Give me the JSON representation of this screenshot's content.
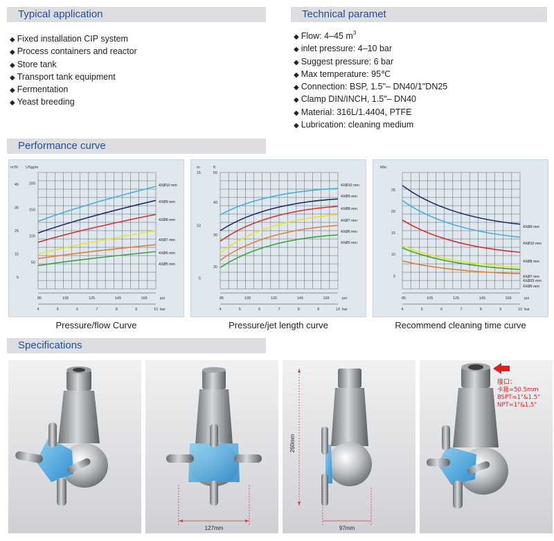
{
  "typical_application": {
    "title": "Typical application",
    "items": [
      "Fixed installation CIP system",
      "Process containers and reactor",
      "Store tank",
      "Transport tank equipment",
      "Fermentation",
      "Yeast breeding"
    ]
  },
  "technical": {
    "title": "Technical paramet",
    "flow_prefix": "Flow: 4–45 m",
    "flow_sup": "3",
    "items": [
      "inlet pressure: 4–10 bar",
      "Suggest pressure: 6 bar",
      "Max temperature: 95℃",
      "Connection: BSP, 1.5\"– DN40/1\"DN25",
      "Clamp DIN/INCH, 1.5\"– DN40",
      "Material: 316L/1.4404, PTFE",
      "Lubrication: cleaning medium"
    ]
  },
  "performance": {
    "title": "Performance curve",
    "captions": [
      "Pressure/flow Curve",
      "Pressure/jet length curve",
      "Recommend cleaning time curve"
    ]
  },
  "specifications": {
    "title": "Specifications",
    "dim_width_1": "127mm",
    "dim_height": "260mm",
    "dim_width_2": "97mm",
    "connection_title": "接口：",
    "connection_lines": [
      "卡箍=50.5mm",
      "BSPT=1\"&1.5\"",
      "NPT=1\"&1.5\""
    ]
  },
  "colors": {
    "accent": "#1f4f9c",
    "panel": "#dfe8ef",
    "series": [
      "#3ab1e4",
      "#1b2a6b",
      "#e02a2a",
      "#f2e21c",
      "#f07a2c",
      "#3aa53a"
    ]
  },
  "chart_data": [
    {
      "type": "line",
      "caption": "Pressure/flow Curve",
      "x": [
        4,
        10
      ],
      "x_ticks_bar": [
        "4",
        "5",
        "6",
        "7",
        "8",
        "9",
        "10"
      ],
      "x_unit_bar": "bar",
      "x_ticks_psi": [
        "85",
        "105",
        "125",
        "145",
        "165"
      ],
      "x_unit_psi": "psi",
      "y_ticks_m3h": [
        "5",
        "15",
        "25",
        "35",
        "45"
      ],
      "y_unit_m3h": "m³/h",
      "y_ticks_usgpm": [
        "50",
        "100",
        "150",
        "200"
      ],
      "y_unit_usgpm": "USgpm",
      "series": [
        {
          "name": "4XØ10 mm",
          "values": [
            29,
            44
          ]
        },
        {
          "name": "4XØ9 mm",
          "values": [
            24,
            38
          ]
        },
        {
          "name": "4XØ8 mm",
          "values": [
            20,
            32
          ]
        },
        {
          "name": "4XØ7 mm",
          "values": [
            15,
            25
          ]
        },
        {
          "name": "4XØ6 mm",
          "values": [
            13,
            19
          ]
        },
        {
          "name": "4XØ5 mm",
          "values": [
            10,
            16
          ]
        }
      ]
    },
    {
      "type": "line",
      "caption": "Pressure/jet length curve",
      "x_ticks_bar": [
        "4",
        "5",
        "6",
        "7",
        "8",
        "9",
        "10"
      ],
      "x_unit_bar": "bar",
      "x_ticks_psi": [
        "85",
        "105",
        "125",
        "145",
        "165"
      ],
      "x_unit_psi": "psi",
      "y_ticks_m": [
        "5",
        "10",
        "15"
      ],
      "y_unit_m": "m",
      "y_ticks_ft": [
        "20",
        "30",
        "40",
        "50"
      ],
      "y_unit_ft": "ft",
      "series": [
        {
          "name": "4XØ10 mm",
          "values": [
            11,
            13.5
          ]
        },
        {
          "name": "4XØ9 mm",
          "values": [
            9.5,
            12.5
          ]
        },
        {
          "name": "4XØ8 mm",
          "values": [
            8.5,
            11.8
          ]
        },
        {
          "name": "4XØ7 mm",
          "values": [
            7.4,
            11
          ]
        },
        {
          "name": "4XØ6 mm",
          "values": [
            6.7,
            10
          ]
        },
        {
          "name": "4XØ5 mm",
          "values": [
            6,
            9.1
          ]
        }
      ]
    },
    {
      "type": "line",
      "caption": "Recommend cleaning time curve",
      "x_ticks_bar": [
        "4",
        "5",
        "6",
        "7",
        "8",
        "9",
        "10"
      ],
      "x_unit_bar": "bar",
      "x_ticks_psi": [
        "85",
        "105",
        "125",
        "145",
        "165"
      ],
      "x_unit_psi": "psi",
      "y_ticks": [
        "5",
        "10",
        "15",
        "20",
        "25"
      ],
      "y_unit": "Min.",
      "series": [
        {
          "name": "4XØ9 mm",
          "values": [
            26,
            17
          ]
        },
        {
          "name": "4XØ10 mm",
          "values": [
            22.5,
            14
          ]
        },
        {
          "name": "4XØ8 mm",
          "values": [
            18,
            10.5
          ]
        },
        {
          "name": "4XØ7 mm",
          "values": [
            12,
            7
          ]
        },
        {
          "name": "4XØ25 mm",
          "values": [
            11.5,
            6.5
          ]
        },
        {
          "name": "4XØ6 mm",
          "values": [
            8.5,
            5.5
          ]
        }
      ]
    }
  ]
}
